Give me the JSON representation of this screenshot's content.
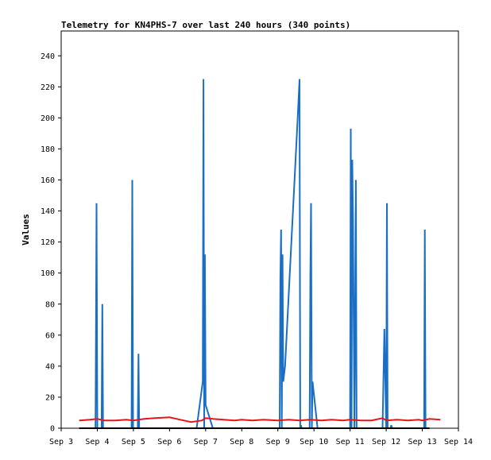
{
  "chart_data": {
    "type": "line",
    "title": "Telemetry for KN4PHS-7 over last 240 hours (340 points)",
    "xlabel": "",
    "ylabel": "Values",
    "x_ticks": [
      "Sep 3",
      "Sep 4",
      "Sep 5",
      "Sep 6",
      "Sep 7",
      "Sep 8",
      "Sep 9",
      "Sep 10",
      "Sep 11",
      "Sep 12",
      "Sep 13",
      "Sep 14"
    ],
    "xlim": [
      3,
      14
    ],
    "y_ticks": [
      0,
      20,
      40,
      60,
      80,
      100,
      120,
      140,
      160,
      180,
      200,
      220,
      240
    ],
    "ylim": [
      0,
      256
    ],
    "grid": false,
    "legend": "none",
    "series": [
      {
        "color": "#1a6fc4",
        "x": [
          3.65,
          3.95,
          3.97,
          3.98,
          4.0,
          4.12,
          4.14,
          4.16,
          4.95,
          4.97,
          4.99,
          5.12,
          5.14,
          5.16,
          6.75,
          6.92,
          6.94,
          6.96,
          6.98,
          7.0,
          7.2,
          9.05,
          9.07,
          9.09,
          9.11,
          9.13,
          9.15,
          9.2,
          9.55,
          9.6,
          9.62,
          9.64,
          9.66,
          9.88,
          9.9,
          9.92,
          9.94,
          9.96,
          10.1,
          11.0,
          11.02,
          11.04,
          11.06,
          11.08,
          11.12,
          11.14,
          11.16,
          11.18,
          11.9,
          11.95,
          12.0,
          12.02,
          12.04,
          12.12,
          12.14,
          12.16,
          13.05,
          13.07,
          13.09,
          13.2
        ],
        "values": [
          0,
          0,
          97,
          145,
          0,
          0,
          80,
          0,
          0,
          160,
          0,
          0,
          48,
          0,
          0,
          30,
          225,
          0,
          112,
          15,
          0,
          0,
          97,
          128,
          0,
          112,
          30,
          40,
          200,
          225,
          0,
          2,
          0,
          0,
          97,
          145,
          0,
          30,
          0,
          0,
          193,
          0,
          173,
          135,
          0,
          80,
          160,
          0,
          0,
          64,
          0,
          145,
          0,
          0,
          2,
          0,
          0,
          128,
          0,
          0
        ]
      },
      {
        "color": "#e8141b",
        "x": [
          3.5,
          3.8,
          4.0,
          4.2,
          4.5,
          4.8,
          5.0,
          5.3,
          5.6,
          6.0,
          6.3,
          6.6,
          6.9,
          7.0,
          7.2,
          7.5,
          7.8,
          8.0,
          8.3,
          8.6,
          9.0,
          9.3,
          9.6,
          9.9,
          10.2,
          10.5,
          10.8,
          11.0,
          11.3,
          11.6,
          11.9,
          12.0,
          12.3,
          12.6,
          12.9,
          13.0,
          13.2,
          13.5
        ],
        "values": [
          5,
          5.5,
          6,
          5,
          5,
          5.5,
          5,
          6,
          6.5,
          7,
          5.5,
          4,
          5,
          6.5,
          6,
          5.5,
          5,
          5.5,
          5,
          5.5,
          5,
          5.5,
          5,
          5.5,
          5,
          5.5,
          5,
          5.5,
          5,
          5,
          6.5,
          5,
          5.5,
          5,
          5.5,
          5,
          6,
          5.5
        ]
      },
      {
        "color": "#000000",
        "x": [
          3.5,
          13.2
        ],
        "values": [
          0,
          0
        ]
      }
    ]
  }
}
